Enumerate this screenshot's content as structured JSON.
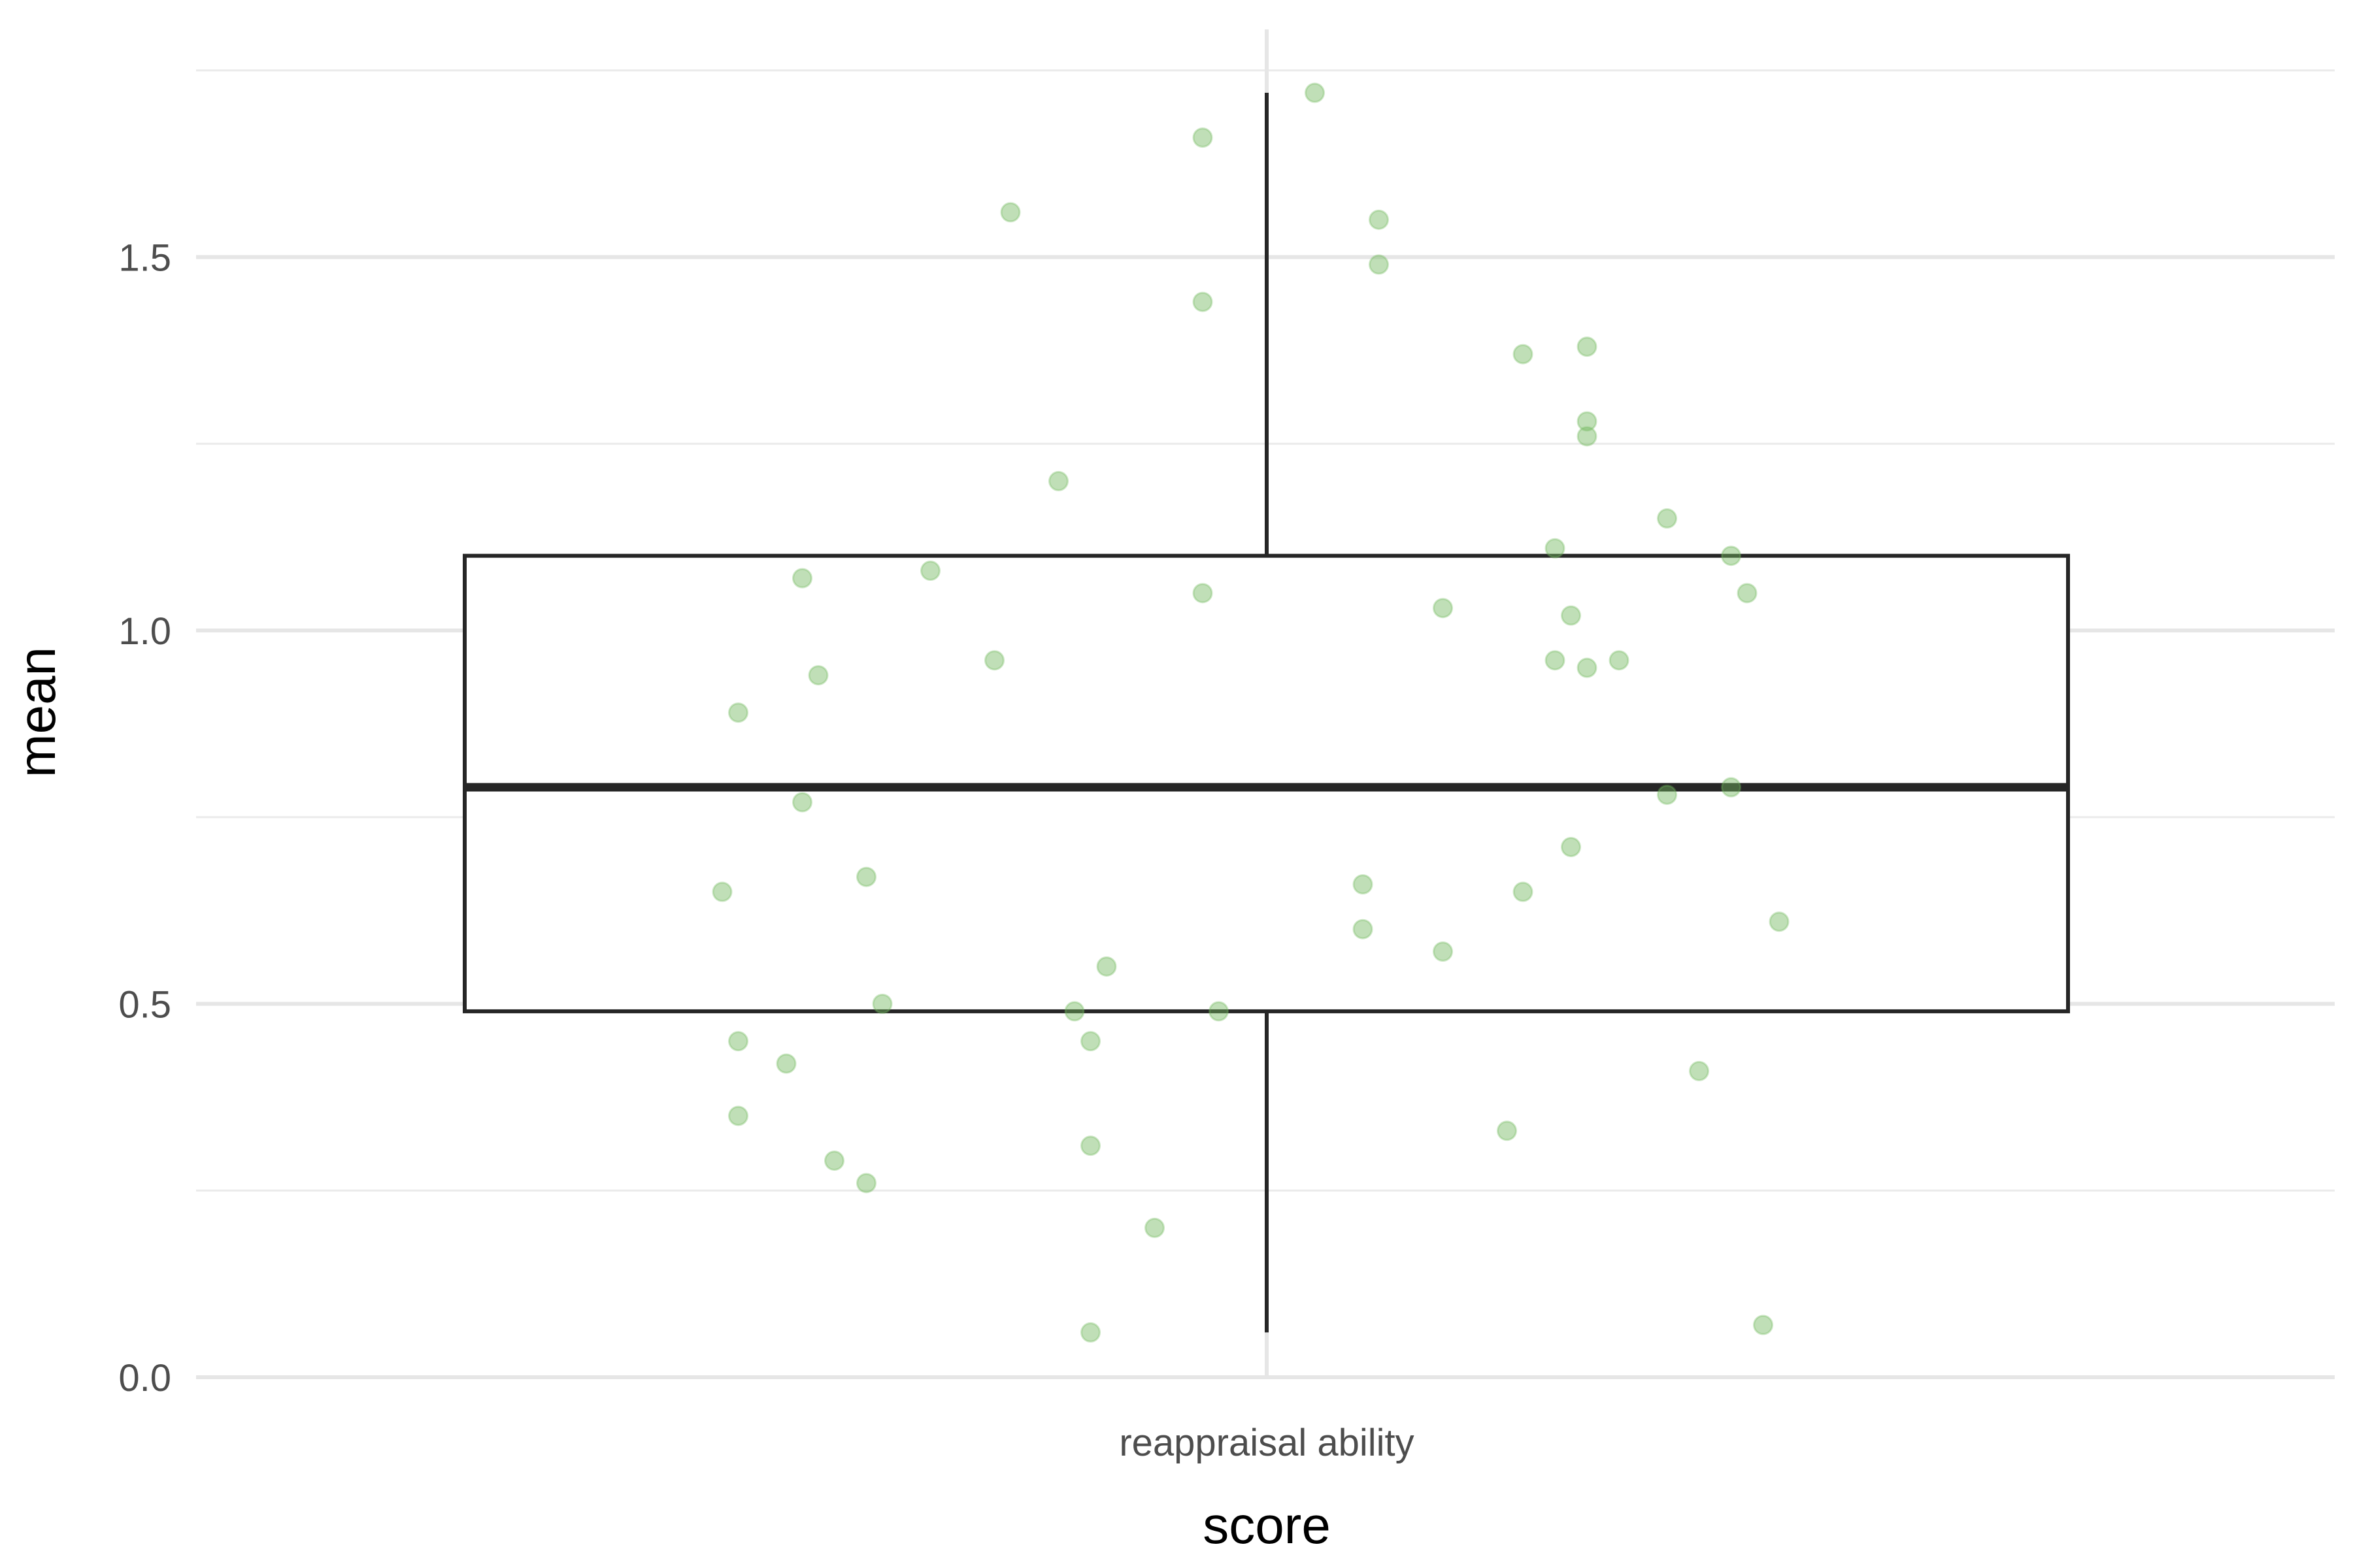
{
  "chart_data": {
    "type": "box",
    "xlabel": "score",
    "ylabel": "mean",
    "categories": [
      "reappraisal ability"
    ],
    "ylim": [
      0,
      1.75
    ],
    "yticks": [
      0.0,
      0.5,
      1.0,
      1.5
    ],
    "ytick_labels": [
      "0.0",
      "0.5",
      "1.0",
      "1.5"
    ],
    "grid": true,
    "legend": "none",
    "box": {
      "lower_whisker": 0.06,
      "q1": 0.49,
      "median": 0.79,
      "q3": 1.1,
      "upper_whisker": 1.72
    },
    "points": [
      {
        "x": 0.03,
        "y": 1.72
      },
      {
        "x": -0.04,
        "y": 1.66
      },
      {
        "x": -0.16,
        "y": 1.56
      },
      {
        "x": 0.07,
        "y": 1.55
      },
      {
        "x": 0.07,
        "y": 1.49
      },
      {
        "x": -0.04,
        "y": 1.44
      },
      {
        "x": 0.16,
        "y": 1.37
      },
      {
        "x": 0.2,
        "y": 1.38
      },
      {
        "x": 0.2,
        "y": 1.28
      },
      {
        "x": 0.2,
        "y": 1.26
      },
      {
        "x": -0.13,
        "y": 1.2
      },
      {
        "x": 0.25,
        "y": 1.15
      },
      {
        "x": 0.18,
        "y": 1.11
      },
      {
        "x": 0.29,
        "y": 1.1
      },
      {
        "x": -0.21,
        "y": 1.08
      },
      {
        "x": -0.29,
        "y": 1.07
      },
      {
        "x": -0.04,
        "y": 1.05
      },
      {
        "x": 0.3,
        "y": 1.05
      },
      {
        "x": 0.11,
        "y": 1.03
      },
      {
        "x": 0.19,
        "y": 1.02
      },
      {
        "x": -0.17,
        "y": 0.96
      },
      {
        "x": 0.18,
        "y": 0.96
      },
      {
        "x": 0.22,
        "y": 0.96
      },
      {
        "x": 0.2,
        "y": 0.95
      },
      {
        "x": -0.28,
        "y": 0.94
      },
      {
        "x": -0.33,
        "y": 0.89
      },
      {
        "x": 0.29,
        "y": 0.79
      },
      {
        "x": 0.25,
        "y": 0.78
      },
      {
        "x": -0.29,
        "y": 0.77
      },
      {
        "x": 0.19,
        "y": 0.71
      },
      {
        "x": -0.25,
        "y": 0.67
      },
      {
        "x": 0.06,
        "y": 0.66
      },
      {
        "x": -0.34,
        "y": 0.65
      },
      {
        "x": 0.16,
        "y": 0.65
      },
      {
        "x": 0.32,
        "y": 0.61
      },
      {
        "x": 0.06,
        "y": 0.6
      },
      {
        "x": 0.11,
        "y": 0.57
      },
      {
        "x": -0.1,
        "y": 0.55
      },
      {
        "x": -0.24,
        "y": 0.5
      },
      {
        "x": -0.12,
        "y": 0.49
      },
      {
        "x": -0.03,
        "y": 0.49
      },
      {
        "x": -0.33,
        "y": 0.45
      },
      {
        "x": -0.11,
        "y": 0.45
      },
      {
        "x": -0.3,
        "y": 0.42
      },
      {
        "x": 0.27,
        "y": 0.41
      },
      {
        "x": -0.33,
        "y": 0.35
      },
      {
        "x": 0.15,
        "y": 0.33
      },
      {
        "x": -0.11,
        "y": 0.31
      },
      {
        "x": -0.27,
        "y": 0.29
      },
      {
        "x": -0.25,
        "y": 0.26
      },
      {
        "x": -0.07,
        "y": 0.2
      },
      {
        "x": 0.31,
        "y": 0.07
      },
      {
        "x": -0.11,
        "y": 0.06
      }
    ],
    "colors": {
      "points": "#74b95f",
      "box": "#262626",
      "grid_major": "#e6e6e6",
      "grid_minor": "#ebebeb"
    }
  }
}
